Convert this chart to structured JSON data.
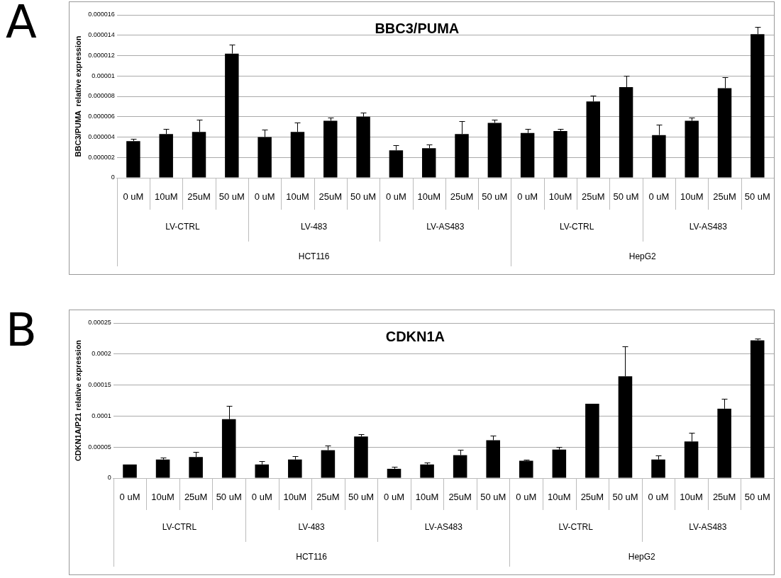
{
  "chart_data": [
    {
      "type": "bar",
      "title": "BBC3/PUMA",
      "ylabel": "BBC3/PUMA  relative expression",
      "categories": [
        "0 uM",
        "10uM",
        "25uM",
        "50 uM",
        "0 uM",
        "10uM",
        "25uM",
        "50 uM",
        "0 uM",
        "10uM",
        "25uM",
        "50 uM",
        "0 uM",
        "10uM",
        "25uM",
        "50 uM",
        "0 uM",
        "10uM",
        "25uM",
        "50 uM"
      ],
      "values": [
        3.6e-06,
        4.3e-06,
        4.5e-06,
        1.22e-05,
        4e-06,
        4.5e-06,
        5.6e-06,
        6e-06,
        2.7e-06,
        2.9e-06,
        4.3e-06,
        5.4e-06,
        4.4e-06,
        4.6e-06,
        7.5e-06,
        8.9e-06,
        4.2e-06,
        5.6e-06,
        8.8e-06,
        1.41e-05
      ],
      "errors": [
        [
          3.6e-06,
          3.8e-06
        ],
        [
          4.3e-06,
          4.8e-06
        ],
        [
          4.5e-06,
          5.7e-06
        ],
        [
          1.22e-05,
          1.31e-05
        ],
        [
          4e-06,
          4.7e-06
        ],
        [
          4.5e-06,
          5.4e-06
        ],
        [
          5.6e-06,
          5.9e-06
        ],
        [
          6e-06,
          6.4e-06
        ],
        [
          2.7e-06,
          3.2e-06
        ],
        [
          2.9e-06,
          3.3e-06
        ],
        [
          4.3e-06,
          5.6e-06
        ],
        [
          5.4e-06,
          5.7e-06
        ],
        [
          4.4e-06,
          4.8e-06
        ],
        [
          4.6e-06,
          4.8e-06
        ],
        [
          7.5e-06,
          8.1e-06
        ],
        [
          8.9e-06,
          1e-05
        ],
        [
          4.2e-06,
          5.2e-06
        ],
        [
          5.6e-06,
          5.9e-06
        ],
        [
          8.8e-06,
          9.9e-06
        ],
        [
          1.41e-05,
          1.48e-05
        ]
      ],
      "color": "#000000",
      "ylim": [
        0,
        1.6e-05
      ],
      "yticks": [
        0,
        {
          "value": 2e-06,
          "label": "0.000002"
        },
        {
          "value": 4e-06,
          "label": "0.000004"
        },
        {
          "value": 6e-06,
          "label": "0.000006"
        },
        {
          "value": 8e-06,
          "label": "0.000008"
        },
        {
          "value": 1e-05,
          "label": "0.00001"
        },
        {
          "value": 1.2e-05,
          "label": "0.000012"
        },
        {
          "value": 1.4e-05,
          "label": "0.000014"
        },
        {
          "value": 1.6e-05,
          "label": "0.000016"
        }
      ],
      "grid": "y",
      "annotations": [
        "A",
        "LV-CTRL",
        "LV-483",
        "LV-AS483",
        "LV-CTRL",
        "LV-AS483",
        "HCT116",
        "HepG2"
      ]
    },
    {
      "type": "bar",
      "title": "CDKN1A",
      "ylabel": "CDKN1A/P21 relative expression",
      "categories": [
        "0 uM",
        "10uM",
        "25uM",
        "50 uM",
        "0 uM",
        "10uM",
        "25uM",
        "50 uM",
        "0 uM",
        "10uM",
        "25uM",
        "50 uM",
        "0 uM",
        "10uM",
        "25uM",
        "50 uM",
        "0 uM",
        "10uM",
        "25uM",
        "50 uM"
      ],
      "values": [
        2.2e-05,
        3e-05,
        3.4e-05,
        9.5e-05,
        2.2e-05,
        3e-05,
        4.5e-05,
        6.7e-05,
        1.5e-05,
        2.2e-05,
        3.7e-05,
        6.1e-05,
        2.8e-05,
        4.6e-05,
        0.00012,
        0.000164,
        3e-05,
        5.9e-05,
        0.000112,
        0.000222
      ],
      "errors": [
        null,
        [
          3e-05,
          3.3e-05
        ],
        [
          3.4e-05,
          4.2e-05
        ],
        [
          9.5e-05,
          0.000117
        ],
        [
          2.2e-05,
          2.7e-05
        ],
        [
          3e-05,
          3.5e-05
        ],
        [
          4.5e-05,
          5.3e-05
        ],
        [
          6.7e-05,
          7.1e-05
        ],
        [
          1.5e-05,
          1.8e-05
        ],
        [
          2.2e-05,
          2.5e-05
        ],
        [
          3.7e-05,
          4.6e-05
        ],
        [
          6.1e-05,
          6.8e-05
        ],
        [
          2.8e-05,
          3e-05
        ],
        [
          4.6e-05,
          5e-05
        ],
        null,
        [
          0.000164,
          0.000212
        ],
        [
          3e-05,
          3.6e-05
        ],
        [
          5.9e-05,
          7.3e-05
        ],
        [
          0.000112,
          0.000128
        ],
        [
          0.000222,
          0.000225
        ]
      ],
      "color": "#000000",
      "ylim": [
        0,
        0.00025
      ],
      "yticks": [
        0,
        {
          "value": 5e-05,
          "label": "0.00005"
        },
        {
          "value": 0.0001,
          "label": "0.0001"
        },
        {
          "value": 0.00015,
          "label": "0.00015"
        },
        {
          "value": 0.0002,
          "label": "0.0002"
        },
        {
          "value": 0.00025,
          "label": "0.00025"
        }
      ],
      "grid": "y",
      "annotations": [
        "B",
        "LV-CTRL",
        "LV-483",
        "LV-AS483",
        "LV-CTRL",
        "LV-AS483",
        "HCT116",
        "HepG2"
      ]
    }
  ]
}
